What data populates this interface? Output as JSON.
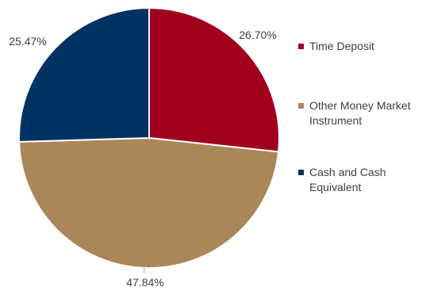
{
  "chart_data": {
    "type": "pie",
    "title": "",
    "slices": [
      {
        "label": "Time Deposit",
        "value": 26.7,
        "display": "26.70%",
        "color": "#A0001E"
      },
      {
        "label": "Other Money Market Instrument",
        "value": 47.84,
        "display": "47.84%",
        "color": "#AB8658"
      },
      {
        "label": "Cash and Cash Equivalent",
        "value": 25.47,
        "display": "25.47%",
        "color": "#003263"
      }
    ],
    "legend_position": "right",
    "start_angle": "12 o'clock",
    "direction": "clockwise"
  },
  "legend": {
    "items": [
      {
        "label": "Time Deposit",
        "color": "#A0001E"
      },
      {
        "label": "Other Money Market Instrument",
        "color": "#AB8658"
      },
      {
        "label": "Cash and Cash Equivalent",
        "color": "#003263"
      }
    ]
  }
}
